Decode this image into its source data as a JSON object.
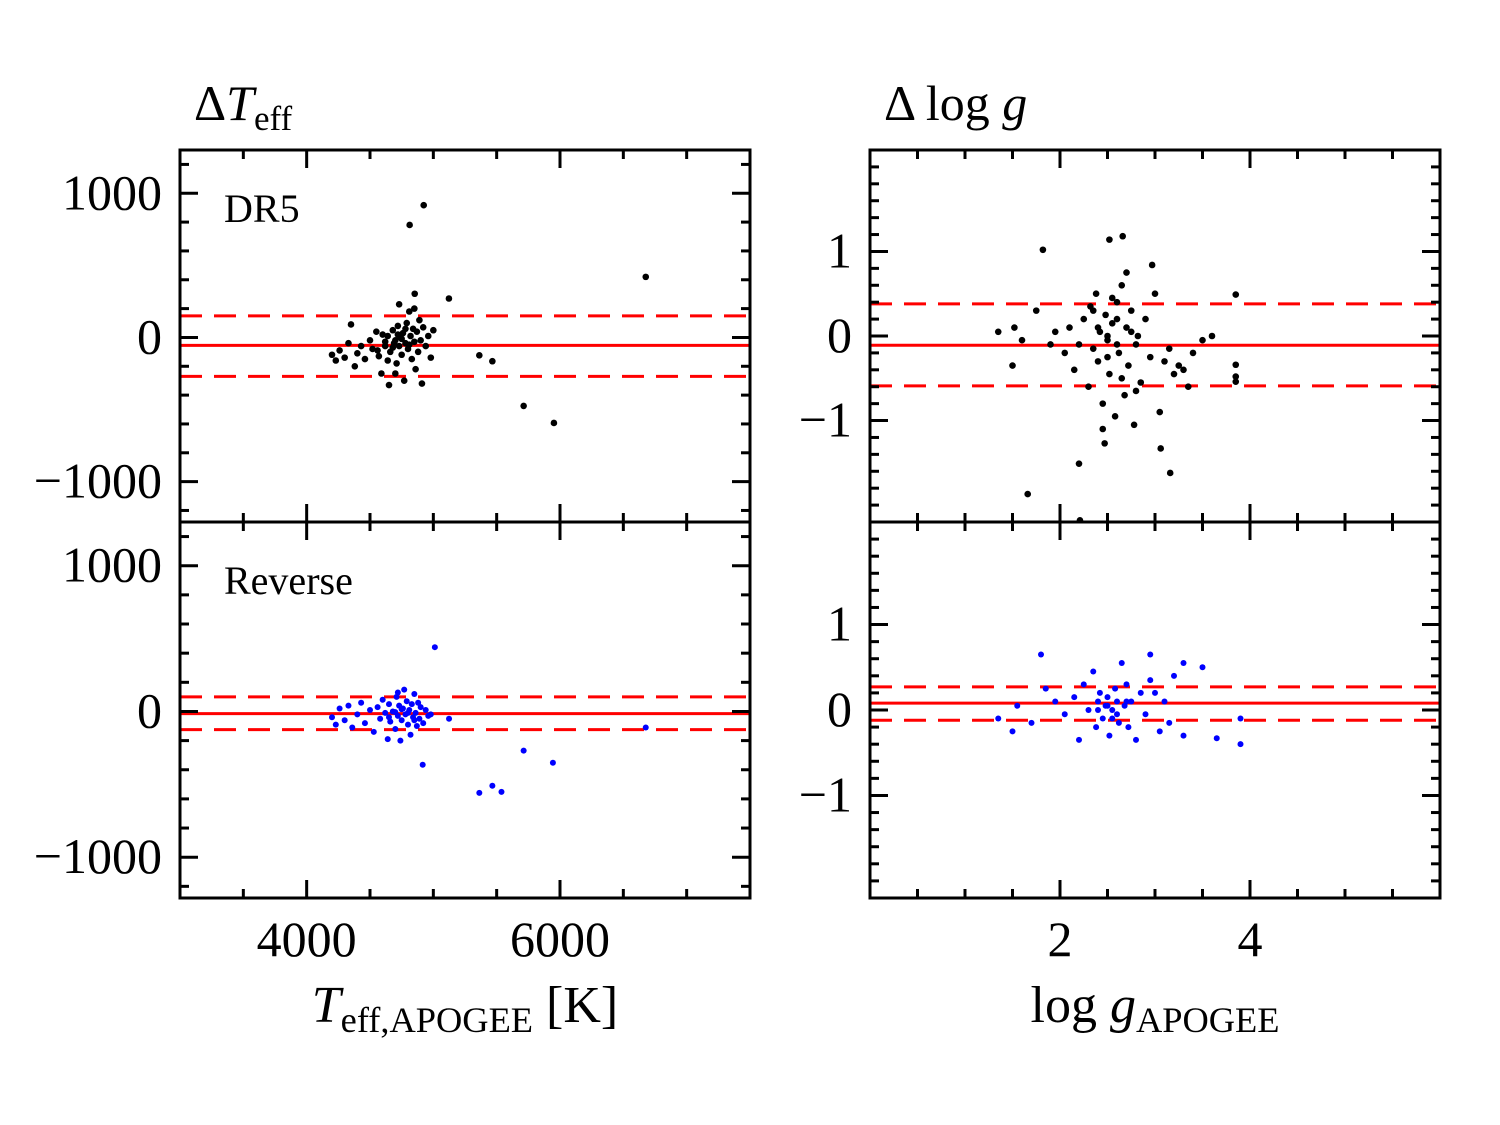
{
  "chart_data": [
    {
      "type": "scatter",
      "title": [
        "Δ",
        "T",
        "eff"
      ],
      "annotation": "DR5",
      "color": "#000000",
      "xlim": [
        3000,
        7500
      ],
      "ylim": [
        -1280,
        1300
      ],
      "xticks": [
        4000,
        6000
      ],
      "xticklabels": false,
      "xminorticks": [
        3500,
        4500,
        5000,
        5500,
        6500,
        7000
      ],
      "yticks": [
        {
          "value": -1000,
          "label": "−1000"
        },
        0,
        1000
      ],
      "yminorticks": [
        -1200,
        -800,
        -600,
        -400,
        -200,
        200,
        400,
        600,
        800,
        1200
      ],
      "hlines": [
        {
          "value": -55,
          "style": "solid"
        },
        {
          "value": 150,
          "style": "dashed"
        },
        {
          "value": -270,
          "style": "dashed"
        }
      ],
      "hline_color": "#ff0000",
      "x": [
        4200,
        4230,
        4260,
        4300,
        4330,
        4350,
        4380,
        4400,
        4430,
        4460,
        4500,
        4520,
        4550,
        4570,
        4590,
        4600,
        4620,
        4640,
        4650,
        4660,
        4680,
        4700,
        4710,
        4720,
        4730,
        4740,
        4750,
        4760,
        4770,
        4780,
        4790,
        4800,
        4810,
        4820,
        4830,
        4840,
        4850,
        4860,
        4870,
        4880,
        4890,
        4900,
        4910,
        4920,
        4940,
        4960,
        4980,
        5000,
        4620,
        4680,
        4720,
        4750,
        4780,
        4690,
        4560,
        4810,
        4850,
        4730,
        4700,
        4640,
        4924,
        4813,
        6677,
        5123,
        5713,
        5952,
        5363,
        5466,
        4853
      ],
      "values": [
        -120,
        -160,
        -90,
        -140,
        -40,
        90,
        -200,
        -110,
        -60,
        -150,
        -20,
        -80,
        40,
        -130,
        -250,
        20,
        -60,
        10,
        -330,
        -100,
        50,
        -20,
        -180,
        80,
        -60,
        0,
        -120,
        30,
        -300,
        -40,
        100,
        -80,
        180,
        10,
        -150,
        60,
        -30,
        -220,
        40,
        -100,
        120,
        -20,
        -320,
        70,
        -60,
        10,
        -140,
        50,
        -30,
        -70,
        20,
        -10,
        60,
        -40,
        -90,
        -50,
        200,
        230,
        -250,
        -160,
        917,
        780,
        420,
        270,
        -475,
        -593,
        -124,
        -165,
        303
      ]
    },
    {
      "type": "scatter",
      "annotation": "Reverse",
      "xlabel": [
        "T",
        "eff,APOGEE",
        " [K]"
      ],
      "color": "#0000ff",
      "xlim": [
        3000,
        7500
      ],
      "ylim": [
        -1280,
        1300
      ],
      "xticks": [
        4000,
        6000
      ],
      "xminorticks": [
        3500,
        4500,
        5000,
        5500,
        6500,
        7000
      ],
      "yticks": [
        {
          "value": -1000,
          "label": "−1000"
        },
        0,
        1000
      ],
      "yminorticks": [
        -1200,
        -800,
        -600,
        -400,
        -200,
        200,
        400,
        600,
        800,
        1200
      ],
      "hlines": [
        {
          "value": -15,
          "style": "solid"
        },
        {
          "value": 100,
          "style": "dashed"
        },
        {
          "value": -125,
          "style": "dashed"
        }
      ],
      "hline_color": "#ff0000",
      "x": [
        4200,
        4230,
        4260,
        4300,
        4330,
        4360,
        4400,
        4430,
        4460,
        4500,
        4530,
        4560,
        4580,
        4600,
        4620,
        4640,
        4650,
        4660,
        4680,
        4700,
        4710,
        4720,
        4730,
        4740,
        4750,
        4760,
        4770,
        4780,
        4790,
        4800,
        4810,
        4820,
        4830,
        4840,
        4850,
        4860,
        4870,
        4880,
        4890,
        4900,
        4920,
        4940,
        4960,
        4980,
        4700,
        4750,
        4800,
        4650,
        4850,
        4720,
        5012,
        6677,
        4916,
        5713,
        5944,
        5466,
        5363,
        5538,
        5124
      ],
      "values": [
        -40,
        -90,
        20,
        -60,
        40,
        -110,
        -20,
        60,
        -80,
        10,
        -140,
        30,
        -50,
        80,
        -10,
        -190,
        50,
        -70,
        0,
        -120,
        100,
        -30,
        40,
        -200,
        -60,
        20,
        150,
        -20,
        70,
        -90,
        10,
        -160,
        50,
        -40,
        120,
        -10,
        -100,
        60,
        -50,
        30,
        -80,
        10,
        -30,
        -20,
        -5,
        15,
        -10,
        -40,
        -60,
        130,
        441,
        -110,
        -366,
        -269,
        -352,
        -510,
        -559,
        -552,
        -50
      ]
    },
    {
      "type": "scatter",
      "title": [
        "Δ log ",
        "g"
      ],
      "color": "#000000",
      "xlim": [
        0,
        6
      ],
      "ylim": [
        -2.2,
        2.2
      ],
      "xticks": [
        2,
        4
      ],
      "xticklabels": false,
      "xminorticks": [
        0.5,
        1,
        1.5,
        2.5,
        3,
        3.5,
        4.5,
        5,
        5.5
      ],
      "yticks": [
        {
          "value": -1,
          "label": "−1"
        },
        0,
        1
      ],
      "yminorticks": [
        -2,
        -1.8,
        -1.6,
        -1.4,
        -1.2,
        -0.8,
        -0.6,
        -0.4,
        -0.2,
        0.2,
        0.4,
        0.6,
        0.8,
        1.2,
        1.4,
        1.6,
        1.8,
        2
      ],
      "hlines": [
        {
          "value": -0.11,
          "style": "solid"
        },
        {
          "value": 0.38,
          "style": "dashed"
        },
        {
          "value": -0.59,
          "style": "dashed"
        }
      ],
      "hline_color": "#ff0000",
      "x": [
        1.35,
        1.5,
        1.52,
        1.6,
        1.75,
        1.9,
        1.95,
        2.05,
        2.1,
        2.15,
        2.2,
        2.25,
        2.3,
        2.32,
        2.35,
        2.38,
        2.4,
        2.42,
        2.45,
        2.48,
        2.5,
        2.52,
        2.55,
        2.58,
        2.6,
        2.62,
        2.65,
        2.68,
        2.7,
        2.72,
        2.75,
        2.78,
        2.8,
        2.82,
        2.85,
        2.9,
        2.95,
        3.0,
        3.05,
        3.1,
        3.15,
        3.2,
        3.25,
        3.3,
        3.35,
        3.4,
        3.5,
        3.6,
        2.5,
        2.6,
        2.4,
        2.7,
        2.55,
        2.65,
        2.45,
        2.8,
        2.35,
        2.6,
        2.5,
        2.75,
        1.82,
        2.66,
        2.52,
        3.85,
        1.66,
        2.2,
        3.16,
        2.47,
        3.06,
        2.21,
        3.85,
        3.85,
        3.85,
        2.97
      ],
      "values": [
        0.05,
        -0.35,
        0.1,
        -0.05,
        0.3,
        -0.1,
        0.05,
        -0.2,
        0.1,
        -0.4,
        -0.1,
        0.2,
        -0.6,
        0.35,
        -0.15,
        0.5,
        -0.3,
        0.05,
        -0.8,
        0.25,
        -0.05,
        -0.45,
        0.15,
        -0.95,
        0.4,
        -0.2,
        0.6,
        -0.7,
        0.1,
        -0.35,
        0.3,
        -1.05,
        -0.1,
        0.0,
        -0.55,
        0.2,
        -0.25,
        0.5,
        -0.9,
        -0.3,
        -0.15,
        -0.45,
        -0.35,
        -0.4,
        -0.6,
        -0.2,
        -0.05,
        0.0,
        0.0,
        -0.1,
        0.1,
        0.75,
        0.45,
        -0.5,
        -1.1,
        -0.65,
        0.3,
        0.2,
        -0.25,
        0.05,
        1.02,
        1.18,
        1.14,
        0.49,
        -1.87,
        -1.51,
        -1.62,
        -1.27,
        -1.33,
        -2.18,
        -0.34,
        -0.48,
        -0.54,
        0.84
      ]
    },
    {
      "type": "scatter",
      "xlabel": [
        "log ",
        "g",
        "APOGEE"
      ],
      "color": "#0000ff",
      "xlim": [
        0,
        6
      ],
      "ylim": [
        -2.2,
        2.2
      ],
      "xticks": [
        2,
        4
      ],
      "xminorticks": [
        0.5,
        1,
        1.5,
        2.5,
        3,
        3.5,
        4.5,
        5,
        5.5
      ],
      "yticks": [
        {
          "value": -1,
          "label": "−1"
        },
        0,
        1
      ],
      "yminorticks": [
        -2,
        -1.8,
        -1.6,
        -1.4,
        -1.2,
        -0.8,
        -0.6,
        -0.4,
        -0.2,
        0.2,
        0.4,
        0.6,
        0.8,
        1.2,
        1.4,
        1.6,
        1.8,
        2
      ],
      "hlines": [
        {
          "value": 0.08,
          "style": "solid"
        },
        {
          "value": 0.27,
          "style": "dashed"
        },
        {
          "value": -0.12,
          "style": "dashed"
        }
      ],
      "hline_color": "#ff0000",
      "x": [
        1.35,
        1.5,
        1.55,
        1.7,
        1.85,
        1.95,
        2.05,
        2.15,
        2.2,
        2.25,
        2.3,
        2.35,
        2.38,
        2.4,
        2.42,
        2.45,
        2.48,
        2.5,
        2.52,
        2.55,
        2.58,
        2.6,
        2.62,
        2.65,
        2.68,
        2.7,
        2.72,
        2.75,
        2.8,
        2.85,
        2.9,
        2.95,
        3.0,
        3.05,
        3.1,
        3.15,
        3.2,
        3.3,
        3.5,
        3.9,
        3.9,
        3.65,
        1.8,
        2.95,
        3.3,
        2.5,
        2.6,
        2.4,
        2.7,
        2.55
      ],
      "values": [
        -0.1,
        -0.25,
        0.05,
        -0.15,
        0.25,
        0.1,
        -0.05,
        0.15,
        -0.35,
        0.3,
        0.0,
        0.45,
        -0.2,
        0.1,
        0.2,
        -0.1,
        0.05,
        0.15,
        -0.3,
        0.0,
        0.25,
        0.1,
        -0.15,
        0.55,
        0.05,
        0.3,
        -0.2,
        0.1,
        -0.35,
        0.2,
        -0.05,
        0.35,
        0.2,
        -0.25,
        0.1,
        -0.15,
        0.4,
        -0.3,
        0.5,
        -0.1,
        -0.4,
        -0.33,
        0.65,
        0.65,
        0.55,
        0.05,
        -0.05,
        0.0,
        0.1,
        -0.1
      ]
    }
  ]
}
